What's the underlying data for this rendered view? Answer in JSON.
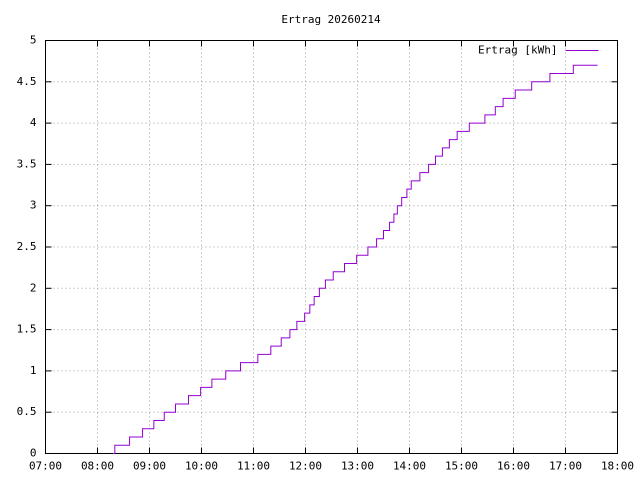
{
  "chart_data": {
    "type": "line",
    "title": "Ertrag 20260214",
    "x": [
      "08:18",
      "08:20",
      "08:37",
      "08:52",
      "09:05",
      "09:17",
      "09:30",
      "09:45",
      "09:59",
      "10:12",
      "10:28",
      "10:45",
      "11:05",
      "11:20",
      "11:32",
      "11:42",
      "11:50",
      "11:59",
      "12:05",
      "12:10",
      "12:16",
      "12:23",
      "12:32",
      "12:45",
      "12:59",
      "13:12",
      "13:22",
      "13:30",
      "13:37",
      "13:42",
      "13:46",
      "13:51",
      "13:57",
      "14:02",
      "14:12",
      "14:22",
      "14:30",
      "14:38",
      "14:46",
      "14:55",
      "15:09",
      "15:27",
      "15:39",
      "15:48",
      "16:02",
      "16:21",
      "16:42",
      "17:09",
      "17:37"
    ],
    "series": [
      {
        "name": "Ertrag [kWh]",
        "color": "#9400d3",
        "values": [
          0,
          0.1,
          0.2,
          0.3,
          0.4,
          0.5,
          0.6,
          0.7,
          0.8,
          0.9,
          1.0,
          1.1,
          1.2,
          1.3,
          1.4,
          1.5,
          1.6,
          1.7,
          1.8,
          1.9,
          2.0,
          2.1,
          2.2,
          2.3,
          2.4,
          2.5,
          2.6,
          2.7,
          2.8,
          2.9,
          3.0,
          3.1,
          3.2,
          3.3,
          3.4,
          3.5,
          3.6,
          3.7,
          3.8,
          3.9,
          4.0,
          4.1,
          4.2,
          4.3,
          4.4,
          4.5,
          4.6,
          4.7,
          4.7
        ]
      }
    ],
    "xlim": [
      "07:00",
      "18:00"
    ],
    "xticks": [
      "07:00",
      "08:00",
      "09:00",
      "10:00",
      "11:00",
      "12:00",
      "13:00",
      "14:00",
      "15:00",
      "16:00",
      "17:00",
      "18:00"
    ],
    "ylim": [
      0,
      5
    ],
    "yticks": [
      0,
      0.5,
      1,
      1.5,
      2,
      2.5,
      3,
      3.5,
      4,
      4.5,
      5
    ],
    "grid": true,
    "steps": true,
    "legend": "top-right"
  }
}
